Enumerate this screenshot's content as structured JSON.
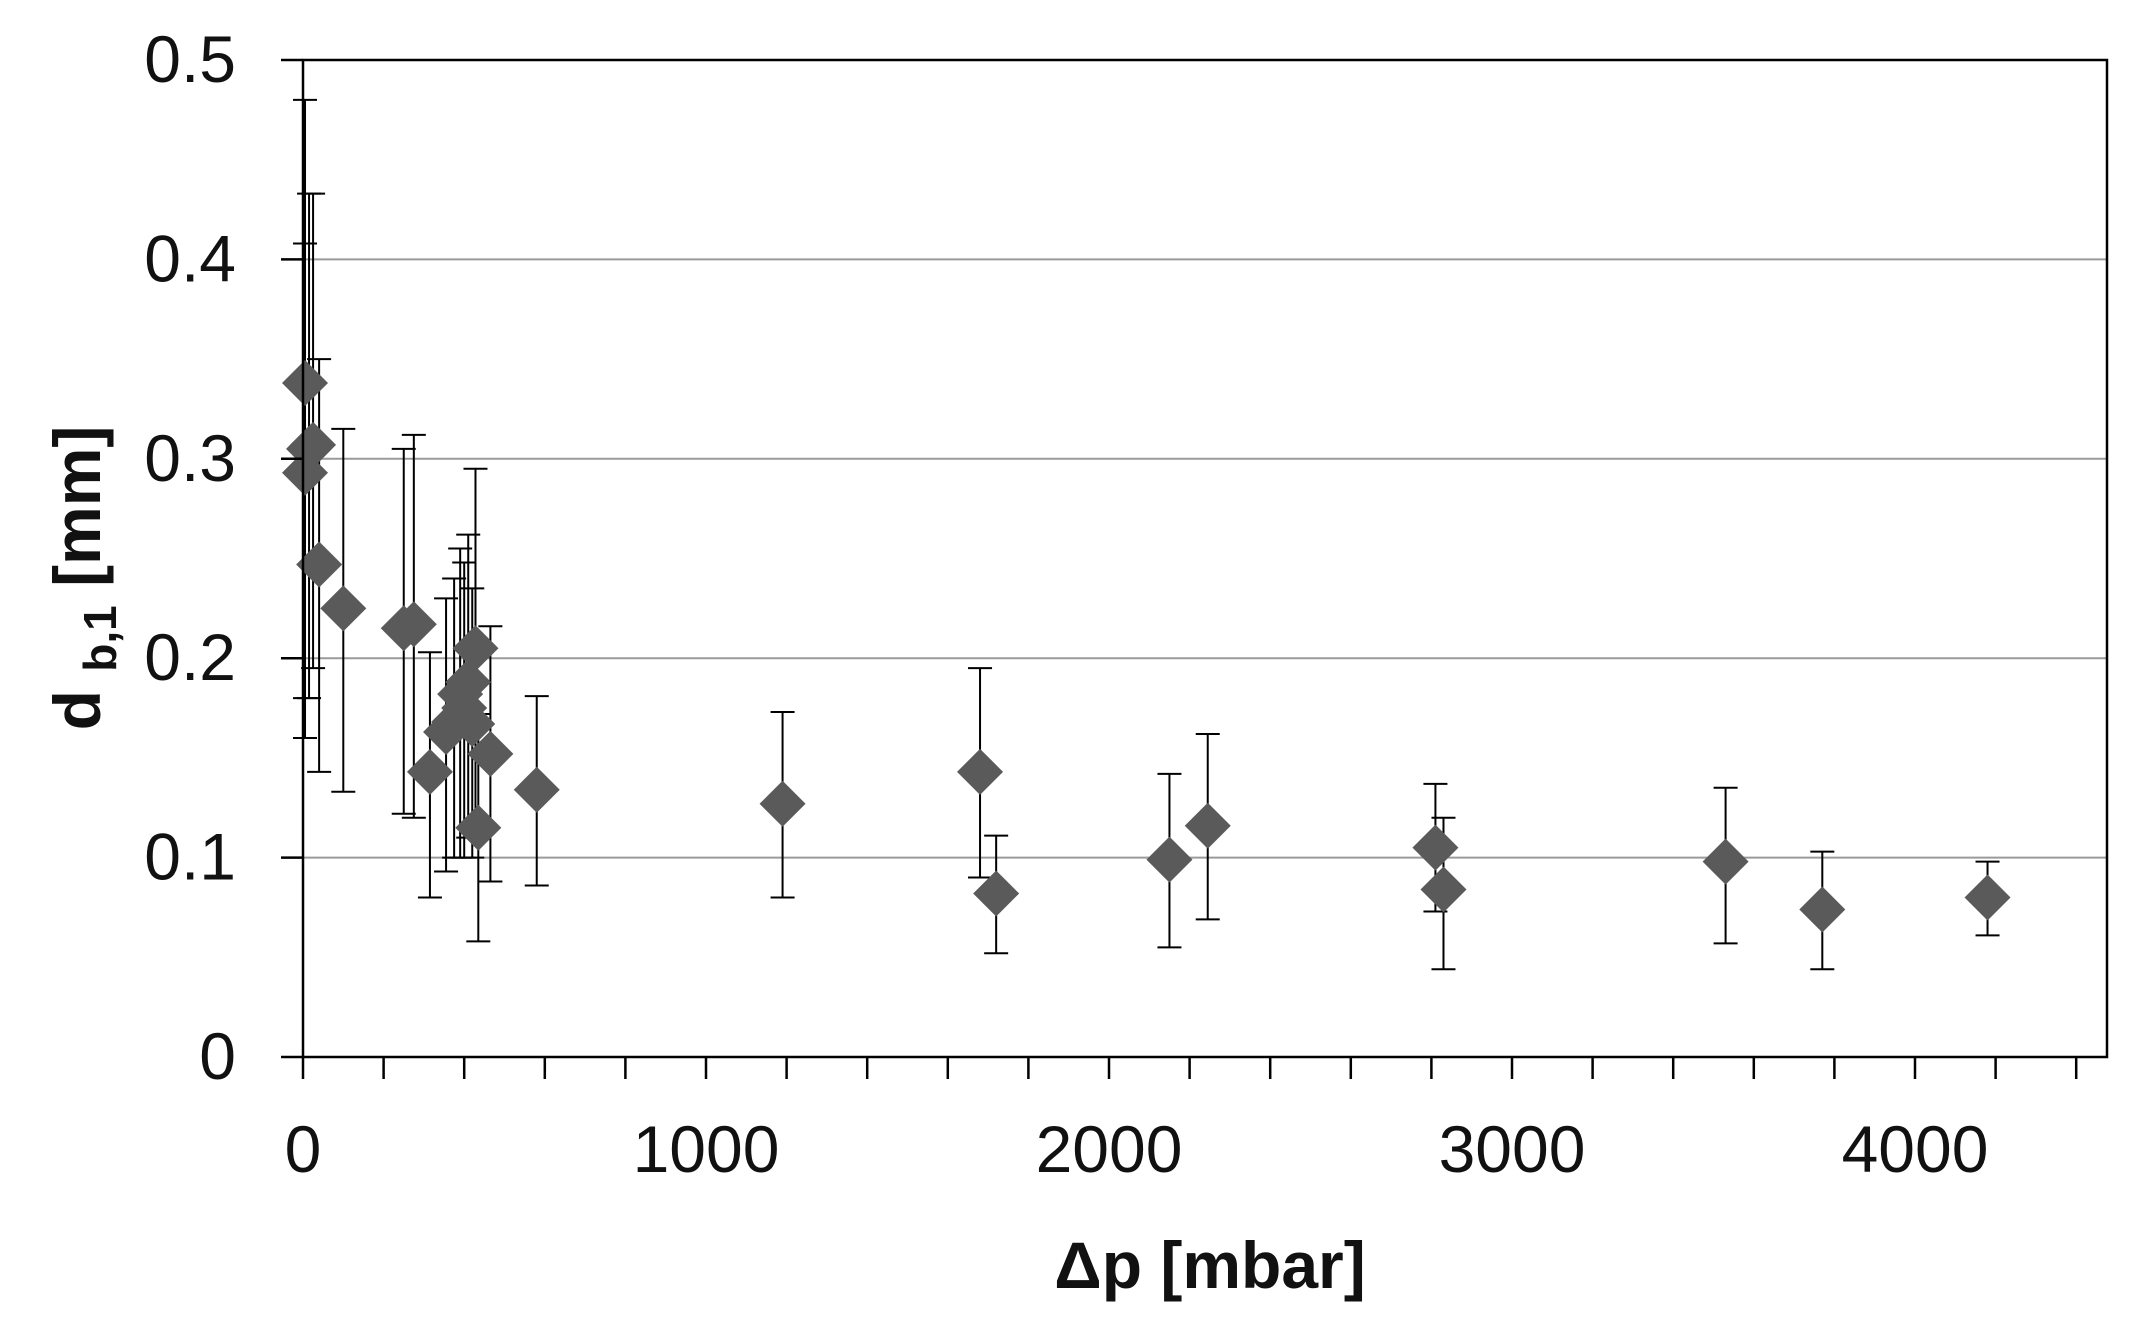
{
  "chart_data": {
    "type": "scatter",
    "title": "",
    "xlabel": "Δp [mbar]",
    "ylabel": {
      "main": "d",
      "subscript": "b,1",
      "unit": " [mm]"
    },
    "xlim": [
      0,
      4500
    ],
    "ylim": [
      0,
      0.5
    ],
    "x_ticks": [
      0,
      1000,
      2000,
      3000,
      4000
    ],
    "x_tick_labels": [
      "0",
      "1000",
      "2000",
      "3000",
      "4000"
    ],
    "x_minor_step": 200,
    "y_ticks": [
      0,
      0.1,
      0.2,
      0.3,
      0.4,
      0.5
    ],
    "y_tick_labels": [
      "0",
      "0.1",
      "0.2",
      "0.3",
      "0.4",
      "0.5"
    ],
    "grid": "horizontal major lines",
    "legend": "none",
    "marker": "diamond",
    "colors": {
      "marker": "#5a5a5a",
      "error_bar": "#000000",
      "grid": "#9a9a9a",
      "axis": "#000000"
    },
    "series": [
      {
        "points": [
          {
            "x": 5,
            "y": 0.338,
            "err_low": 0.16,
            "err_high": 0.48
          },
          {
            "x": 5,
            "y": 0.293,
            "err_low": 0.18,
            "err_high": 0.408
          },
          {
            "x": 15,
            "y": 0.305,
            "err_low": 0.18,
            "err_high": 0.433
          },
          {
            "x": 25,
            "y": 0.307,
            "err_low": 0.195,
            "err_high": 0.433
          },
          {
            "x": 40,
            "y": 0.247,
            "err_low": 0.143,
            "err_high": 0.35
          },
          {
            "x": 100,
            "y": 0.225,
            "err_low": 0.133,
            "err_high": 0.315
          },
          {
            "x": 250,
            "y": 0.215,
            "err_low": 0.122,
            "err_high": 0.305
          },
          {
            "x": 275,
            "y": 0.217,
            "err_low": 0.12,
            "err_high": 0.312
          },
          {
            "x": 315,
            "y": 0.143,
            "err_low": 0.08,
            "err_high": 0.203
          },
          {
            "x": 355,
            "y": 0.163,
            "err_low": 0.093,
            "err_high": 0.23
          },
          {
            "x": 375,
            "y": 0.168,
            "err_low": 0.1,
            "err_high": 0.24
          },
          {
            "x": 390,
            "y": 0.182,
            "err_low": 0.1,
            "err_high": 0.255
          },
          {
            "x": 400,
            "y": 0.175,
            "err_low": 0.1,
            "err_high": 0.248
          },
          {
            "x": 410,
            "y": 0.188,
            "err_low": 0.11,
            "err_high": 0.262
          },
          {
            "x": 420,
            "y": 0.167,
            "err_low": 0.1,
            "err_high": 0.235
          },
          {
            "x": 428,
            "y": 0.205,
            "err_low": 0.115,
            "err_high": 0.295
          },
          {
            "x": 435,
            "y": 0.115,
            "err_low": 0.058,
            "err_high": 0.172
          },
          {
            "x": 465,
            "y": 0.152,
            "err_low": 0.088,
            "err_high": 0.216
          },
          {
            "x": 580,
            "y": 0.134,
            "err_low": 0.086,
            "err_high": 0.181
          },
          {
            "x": 1190,
            "y": 0.127,
            "err_low": 0.08,
            "err_high": 0.173
          },
          {
            "x": 1680,
            "y": 0.143,
            "err_low": 0.09,
            "err_high": 0.195
          },
          {
            "x": 1720,
            "y": 0.082,
            "err_low": 0.052,
            "err_high": 0.111
          },
          {
            "x": 2150,
            "y": 0.099,
            "err_low": 0.055,
            "err_high": 0.142
          },
          {
            "x": 2245,
            "y": 0.116,
            "err_low": 0.069,
            "err_high": 0.162
          },
          {
            "x": 2810,
            "y": 0.105,
            "err_low": 0.073,
            "err_high": 0.137
          },
          {
            "x": 2830,
            "y": 0.084,
            "err_low": 0.044,
            "err_high": 0.12
          },
          {
            "x": 3530,
            "y": 0.098,
            "err_low": 0.057,
            "err_high": 0.135
          },
          {
            "x": 3770,
            "y": 0.074,
            "err_low": 0.044,
            "err_high": 0.103
          },
          {
            "x": 4180,
            "y": 0.08,
            "err_low": 0.061,
            "err_high": 0.098
          }
        ]
      }
    ]
  }
}
